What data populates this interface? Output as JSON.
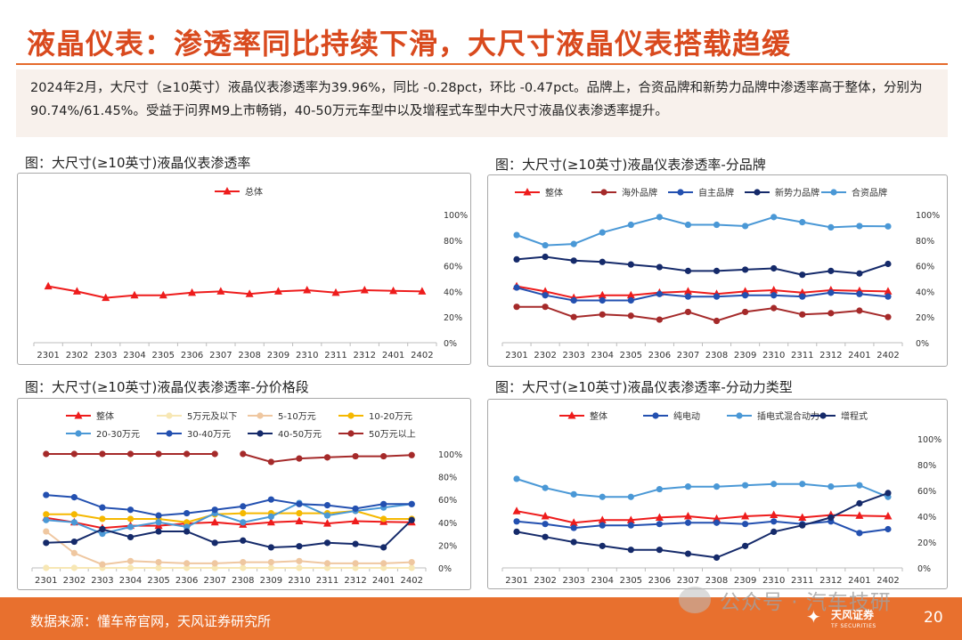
{
  "page": {
    "title": "液晶仪表：渗透率同比持续下滑，大尺寸液晶仪表搭载趋缓",
    "summary": "2024年2月，大尺寸（≥10英寸）液晶仪表渗透率为39.96%，同比 -0.28pct，环比 -0.47pct。品牌上，合资品牌和新势力品牌中渗透率高于整体，分别为90.74%/61.45%。受益于问界M9上市畅销，40-50万元车型中以及增程式车型中大尺寸液晶仪表渗透率提升。",
    "footer_source": "数据来源：懂车帝官网，天风证券研究所",
    "page_number": "20",
    "watermark": "公众号 · 汽车技研",
    "brand_name": "天风证券",
    "brand_sub": "TF SECURITIES",
    "accent_color": "#e8702e",
    "title_color": "#d94a1e"
  },
  "chart_titles": [
    "图：大尺寸(≥10英寸)液晶仪表渗透率",
    "图：大尺寸(≥10英寸)液晶仪表渗透率-分品牌",
    "图：大尺寸(≥10英寸)液晶仪表渗透率-分价格段",
    "图：大尺寸(≥10英寸)液晶仪表渗透率-分动力类型"
  ],
  "chart_data": [
    {
      "type": "line",
      "categories": [
        "2301",
        "2302",
        "2303",
        "2304",
        "2305",
        "2306",
        "2307",
        "2308",
        "2309",
        "2310",
        "2311",
        "2312",
        "2401",
        "2402"
      ],
      "ylim": [
        0,
        100
      ],
      "y_ticks": [
        "0%",
        "20%",
        "40%",
        "60%",
        "80%",
        "100%"
      ],
      "legend_position": "top",
      "series": [
        {
          "name": "总体",
          "color": "#ee1c1c",
          "marker": "triangle",
          "values": [
            44,
            40,
            35,
            37,
            37,
            39,
            40,
            38,
            40,
            41,
            39,
            41,
            40.4,
            40
          ]
        }
      ]
    },
    {
      "type": "line",
      "categories": [
        "2301",
        "2302",
        "2303",
        "2304",
        "2305",
        "2306",
        "2307",
        "2308",
        "2309",
        "2310",
        "2311",
        "2312",
        "2401",
        "2402"
      ],
      "ylim": [
        0,
        100
      ],
      "y_ticks": [
        "0%",
        "20%",
        "40%",
        "60%",
        "80%",
        "100%"
      ],
      "legend_position": "top",
      "series": [
        {
          "name": "整体",
          "color": "#ee1c1c",
          "marker": "triangle",
          "values": [
            44,
            40,
            35,
            37,
            37,
            39,
            40,
            38,
            40,
            41,
            39,
            41,
            40.4,
            40
          ]
        },
        {
          "name": "海外品牌",
          "color": "#a52a2a",
          "marker": "circle",
          "values": [
            28,
            28,
            20,
            22,
            21,
            18,
            24,
            17,
            24,
            27,
            22,
            23,
            25,
            20
          ]
        },
        {
          "name": "自主品牌",
          "color": "#2350b0",
          "marker": "circle",
          "values": [
            43,
            37,
            33,
            33,
            33,
            38,
            36,
            36,
            37,
            37,
            36,
            39,
            38,
            36
          ]
        },
        {
          "name": "新势力品牌",
          "color": "#152a6a",
          "marker": "circle",
          "values": [
            65,
            67,
            64,
            63,
            61,
            59,
            56,
            56,
            57,
            58,
            53,
            56,
            54,
            61.45
          ]
        },
        {
          "name": "合资品牌",
          "color": "#4a98d6",
          "marker": "circle",
          "values": [
            84,
            76,
            77,
            86,
            92,
            98,
            92,
            92,
            91,
            98,
            94,
            90,
            91,
            90.74
          ]
        }
      ]
    },
    {
      "type": "line",
      "categories": [
        "2301",
        "2302",
        "2303",
        "2304",
        "2305",
        "2306",
        "2307",
        "2308",
        "2309",
        "2310",
        "2311",
        "2312",
        "2401",
        "2402"
      ],
      "ylim": [
        0,
        100
      ],
      "y_ticks": [
        "0%",
        "20%",
        "40%",
        "60%",
        "80%",
        "100%"
      ],
      "legend_position": "top",
      "series": [
        {
          "name": "整体",
          "color": "#ee1c1c",
          "marker": "triangle",
          "values": [
            44,
            40,
            35,
            37,
            37,
            39,
            40,
            38,
            40,
            41,
            39,
            41,
            40.4,
            40
          ]
        },
        {
          "name": "5万元及以下",
          "color": "#f7e7b4",
          "marker": "circle",
          "values": [
            0,
            0,
            0,
            0,
            0,
            0,
            0,
            0,
            0,
            0,
            0,
            0,
            0,
            0
          ]
        },
        {
          "name": "5-10万元",
          "color": "#efc7a0",
          "marker": "circle",
          "values": [
            32,
            13,
            3,
            6,
            5,
            4,
            4,
            5,
            5,
            6,
            4,
            4,
            4,
            5
          ]
        },
        {
          "name": "10-20万元",
          "color": "#f5b800",
          "marker": "circle",
          "values": [
            47,
            47,
            43,
            43,
            43,
            40,
            47,
            48,
            48,
            48,
            48,
            50,
            43,
            43
          ]
        },
        {
          "name": "20-30万元",
          "color": "#4a98d6",
          "marker": "circle",
          "values": [
            42,
            40,
            30,
            36,
            40,
            36,
            48,
            40,
            45,
            57,
            46,
            50,
            53,
            56
          ]
        },
        {
          "name": "30-40万元",
          "color": "#2350b0",
          "marker": "circle",
          "values": [
            64,
            62,
            53,
            51,
            46,
            48,
            51,
            54,
            60,
            56,
            55,
            52,
            56,
            56
          ]
        },
        {
          "name": "40-50万元",
          "color": "#152a6a",
          "marker": "circle",
          "values": [
            22,
            23,
            34,
            27,
            32,
            32,
            22,
            24,
            18,
            19,
            22,
            21,
            18,
            42
          ]
        },
        {
          "name": "50万元以上",
          "color": "#a52a2a",
          "marker": "circle",
          "values": [
            100,
            100,
            100,
            100,
            100,
            100,
            100,
            100,
            93,
            96,
            97,
            98,
            98,
            99
          ],
          "gap_after_index": 6
        }
      ]
    },
    {
      "type": "line",
      "categories": [
        "2301",
        "2302",
        "2303",
        "2304",
        "2305",
        "2306",
        "2307",
        "2308",
        "2309",
        "2310",
        "2311",
        "2312",
        "2401",
        "2402"
      ],
      "ylim": [
        0,
        100
      ],
      "y_ticks": [
        "0%",
        "20%",
        "40%",
        "60%",
        "80%",
        "100%"
      ],
      "legend_position": "top",
      "series": [
        {
          "name": "整体",
          "color": "#ee1c1c",
          "marker": "triangle",
          "values": [
            44,
            40,
            35,
            37,
            37,
            39,
            40,
            38,
            40,
            41,
            39,
            41,
            40.4,
            40
          ]
        },
        {
          "name": "纯电动",
          "color": "#2350b0",
          "marker": "circle",
          "values": [
            36,
            34,
            31,
            33,
            33,
            34,
            35,
            35,
            34,
            36,
            34,
            36,
            27,
            30
          ]
        },
        {
          "name": "插电式混合动力",
          "color": "#4a98d6",
          "marker": "circle",
          "values": [
            69,
            62,
            57,
            55,
            55,
            61,
            63,
            63,
            64,
            65,
            65,
            63,
            64,
            55
          ]
        },
        {
          "name": "增程式",
          "color": "#152a6a",
          "marker": "circle",
          "values": [
            28,
            24,
            20,
            17,
            14,
            14,
            11,
            8,
            17,
            28,
            33,
            39,
            50,
            58
          ]
        }
      ]
    }
  ]
}
